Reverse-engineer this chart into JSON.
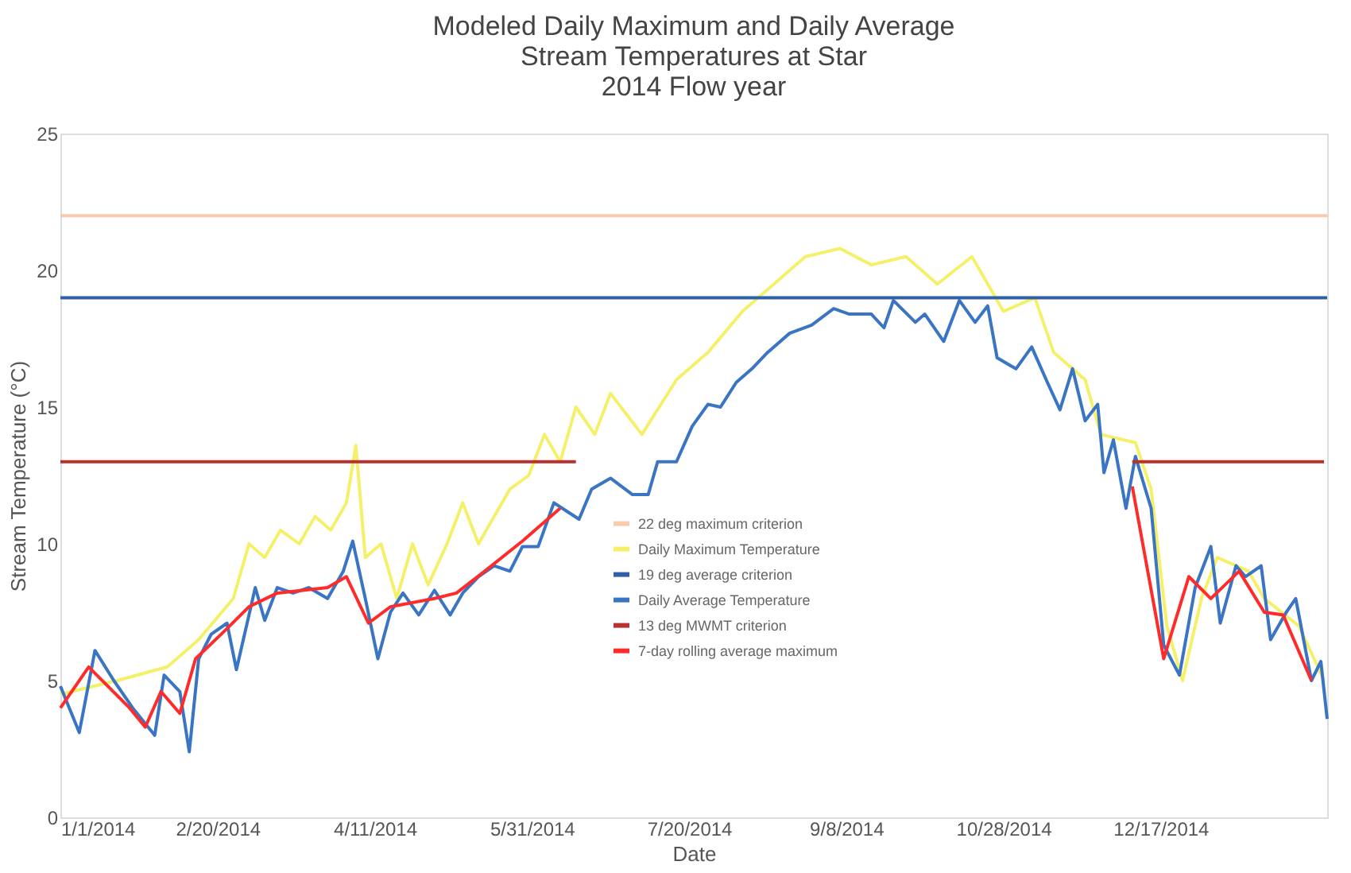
{
  "chart_data": {
    "type": "line",
    "title": [
      "Modeled Daily Maximum and Daily Average",
      "Stream Temperatures at Star",
      "2014 Flow year"
    ],
    "xlabel": "Date",
    "ylabel": "Stream Temperature (°C)",
    "xlim": [
      "2014-01-01",
      "2015-02-08"
    ],
    "ylim": [
      0,
      25
    ],
    "yticks": [
      0,
      5,
      10,
      15,
      20,
      25
    ],
    "xticks": [
      {
        "value": "2014-01-01",
        "label": "1/1/2014"
      },
      {
        "value": "2014-02-20",
        "label": "2/20/2014"
      },
      {
        "value": "2014-04-11",
        "label": "4/11/2014"
      },
      {
        "value": "2014-05-31",
        "label": "5/31/2014"
      },
      {
        "value": "2014-07-20",
        "label": "7/20/2014"
      },
      {
        "value": "2014-09-08",
        "label": "9/8/2014"
      },
      {
        "value": "2014-10-28",
        "label": "10/28/2014"
      },
      {
        "value": "2014-12-17",
        "label": "12/17/2014"
      }
    ],
    "grid": false,
    "legend": "bottom",
    "marker": "none",
    "line_style": "solid",
    "series": [
      {
        "name": "22 deg maximum criterion",
        "color": "#f8cbad",
        "x": [
          "2014-01-01",
          "2015-02-08"
        ],
        "values": [
          22,
          22
        ]
      },
      {
        "name": "Daily Maximum Temperature",
        "color": "#f5f06a",
        "x": [
          "2014-01-01",
          "2014-01-19",
          "2014-02-04",
          "2014-02-14",
          "2014-02-25",
          "2014-03-02",
          "2014-03-07",
          "2014-03-12",
          "2014-03-18",
          "2014-03-23",
          "2014-03-28",
          "2014-04-02",
          "2014-04-05",
          "2014-04-08",
          "2014-04-13",
          "2014-04-18",
          "2014-04-23",
          "2014-04-28",
          "2014-05-04",
          "2014-05-09",
          "2014-05-14",
          "2014-05-19",
          "2014-05-24",
          "2014-05-30",
          "2014-06-04",
          "2014-06-09",
          "2014-06-14",
          "2014-06-20",
          "2014-06-25",
          "2014-07-05",
          "2014-07-16",
          "2014-07-26",
          "2014-08-06",
          "2014-08-16",
          "2014-08-26",
          "2014-09-06",
          "2014-09-16",
          "2014-09-27",
          "2014-10-07",
          "2014-10-18",
          "2014-10-28",
          "2014-11-07",
          "2014-11-13",
          "2014-11-23",
          "2014-11-28",
          "2014-12-09",
          "2014-12-14",
          "2014-12-19",
          "2014-12-24",
          "2014-12-30",
          "2015-01-04",
          "2015-01-14",
          "2015-01-19",
          "2015-01-30",
          "2015-02-07"
        ],
        "values": [
          4.5,
          5.0,
          5.5,
          6.5,
          8.0,
          10.0,
          9.5,
          10.5,
          10.0,
          11.0,
          10.5,
          11.5,
          13.6,
          9.5,
          10.0,
          8.0,
          10.0,
          8.5,
          10.0,
          11.5,
          10.0,
          11.0,
          12.0,
          12.5,
          14.0,
          13.0,
          15.0,
          14.0,
          15.5,
          14.0,
          16.0,
          17.0,
          18.5,
          19.5,
          20.5,
          20.8,
          20.2,
          20.5,
          19.5,
          20.5,
          18.5,
          19.0,
          17.0,
          16.0,
          14.0,
          13.7,
          12.0,
          7.0,
          5.0,
          8.0,
          9.5,
          9.0,
          8.0,
          7.0,
          5.0
        ]
      },
      {
        "name": "19 deg average criterion",
        "color": "#2e5fa8",
        "x": [
          "2014-01-01",
          "2015-02-08"
        ],
        "values": [
          19,
          19
        ]
      },
      {
        "name": "Daily Average Temperature",
        "color": "#3a75c4",
        "x": [
          "2014-01-01",
          "2014-01-07",
          "2014-01-12",
          "2014-01-18",
          "2014-01-24",
          "2014-01-31",
          "2014-02-03",
          "2014-02-08",
          "2014-02-11",
          "2014-02-14",
          "2014-02-18",
          "2014-02-23",
          "2014-02-26",
          "2014-03-04",
          "2014-03-07",
          "2014-03-11",
          "2014-03-16",
          "2014-03-21",
          "2014-03-27",
          "2014-04-01",
          "2014-04-04",
          "2014-04-08",
          "2014-04-12",
          "2014-04-16",
          "2014-04-20",
          "2014-04-25",
          "2014-04-30",
          "2014-05-05",
          "2014-05-09",
          "2014-05-14",
          "2014-05-19",
          "2014-05-24",
          "2014-05-28",
          "2014-06-02",
          "2014-06-07",
          "2014-06-11",
          "2014-06-15",
          "2014-06-19",
          "2014-06-25",
          "2014-07-02",
          "2014-07-07",
          "2014-07-10",
          "2014-07-16",
          "2014-07-21",
          "2014-07-26",
          "2014-07-30",
          "2014-08-04",
          "2014-08-09",
          "2014-08-14",
          "2014-08-21",
          "2014-08-28",
          "2014-09-04",
          "2014-09-09",
          "2014-09-16",
          "2014-09-20",
          "2014-09-23",
          "2014-09-30",
          "2014-10-03",
          "2014-10-09",
          "2014-10-14",
          "2014-10-19",
          "2014-10-23",
          "2014-10-26",
          "2014-11-01",
          "2014-11-06",
          "2014-11-11",
          "2014-11-15",
          "2014-11-19",
          "2014-11-23",
          "2014-11-27",
          "2014-11-29",
          "2014-12-02",
          "2014-12-06",
          "2014-12-09",
          "2014-12-14",
          "2014-12-18",
          "2014-12-23",
          "2014-12-28",
          "2015-01-02",
          "2015-01-05",
          "2015-01-10",
          "2015-01-13",
          "2015-01-18",
          "2015-01-21",
          "2015-01-26",
          "2015-01-29",
          "2015-02-03",
          "2015-02-06",
          "2015-02-08"
        ],
        "values": [
          4.8,
          3.1,
          6.1,
          5.0,
          4.0,
          3.0,
          5.2,
          4.6,
          2.4,
          5.8,
          6.7,
          7.1,
          5.4,
          8.4,
          7.2,
          8.4,
          8.2,
          8.4,
          8.0,
          9.0,
          10.1,
          8.0,
          5.8,
          7.5,
          8.2,
          7.4,
          8.3,
          7.4,
          8.2,
          8.8,
          9.2,
          9.0,
          9.9,
          9.9,
          11.5,
          11.2,
          10.9,
          12.0,
          12.4,
          11.8,
          11.8,
          13.0,
          13.0,
          14.3,
          15.1,
          15.0,
          15.9,
          16.4,
          17.0,
          17.7,
          18.0,
          18.6,
          18.4,
          18.4,
          17.9,
          18.9,
          18.1,
          18.4,
          17.4,
          18.9,
          18.1,
          18.7,
          16.8,
          16.4,
          17.2,
          15.9,
          14.9,
          16.4,
          14.5,
          15.1,
          12.6,
          13.8,
          11.3,
          13.2,
          11.3,
          6.3,
          5.2,
          8.4,
          9.9,
          7.1,
          9.2,
          8.8,
          9.2,
          6.5,
          7.5,
          8.0,
          5.0,
          5.7,
          3.6
        ]
      },
      {
        "name": "13 deg MWMT criterion",
        "color": "#b8312f",
        "x": [
          "2014-01-01",
          "2014-06-14",
          "2014-09-01",
          "2014-12-08",
          "2015-02-07"
        ],
        "values": [
          13,
          13,
          null,
          13,
          13
        ]
      },
      {
        "name": "7-day rolling average maximum",
        "color": "#ff2a2a",
        "x": [
          "2014-01-01",
          "2014-01-10",
          "2014-01-23",
          "2014-01-28",
          "2014-02-02",
          "2014-02-08",
          "2014-02-13",
          "2014-02-23",
          "2014-03-02",
          "2014-03-11",
          "2014-03-27",
          "2014-04-02",
          "2014-04-09",
          "2014-04-16",
          "2014-04-30",
          "2014-05-07",
          "2014-05-16",
          "2014-05-28",
          "2014-06-09",
          "2014-09-01",
          "2014-12-08",
          "2014-12-18",
          "2014-12-26",
          "2015-01-02",
          "2015-01-11",
          "2015-01-19",
          "2015-01-25",
          "2015-02-03"
        ],
        "values": [
          4.0,
          5.5,
          4.0,
          3.3,
          4.6,
          3.8,
          5.8,
          6.9,
          7.7,
          8.2,
          8.4,
          8.8,
          7.1,
          7.7,
          8.0,
          8.2,
          9.0,
          10.1,
          11.3,
          null,
          12.1,
          5.8,
          8.8,
          8.0,
          9.0,
          7.5,
          7.4,
          5.0
        ]
      }
    ]
  }
}
